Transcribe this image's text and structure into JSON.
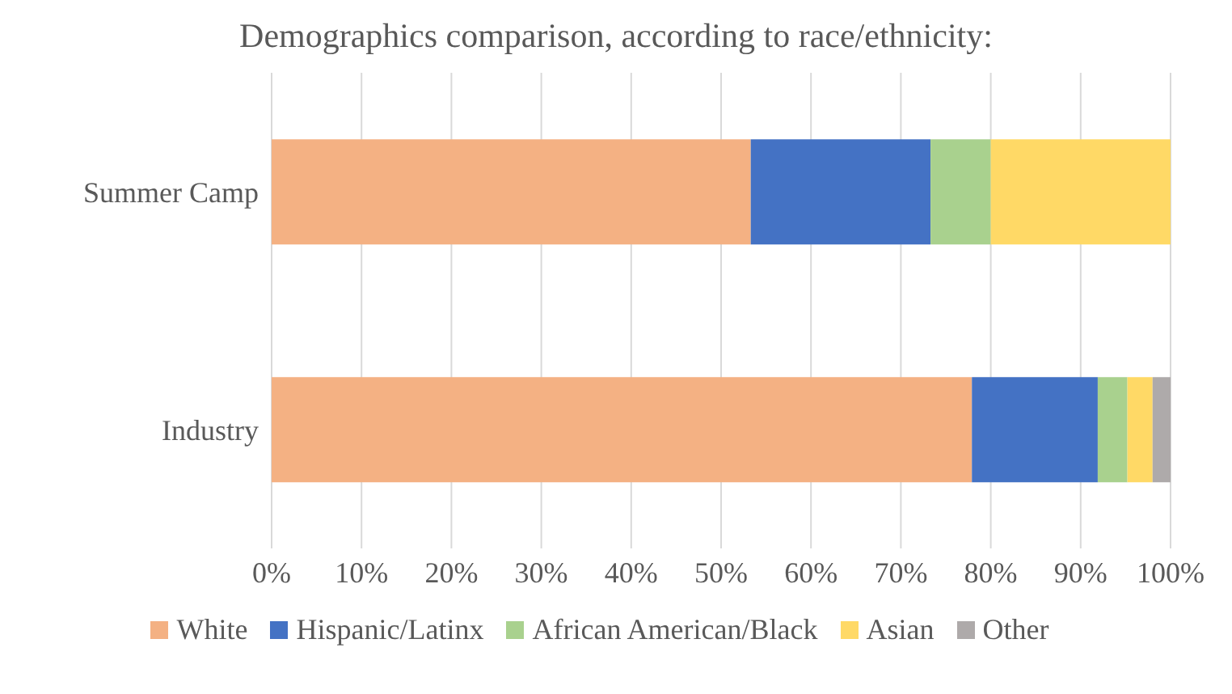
{
  "chart_data": {
    "type": "bar",
    "orientation": "horizontal",
    "stacked": true,
    "title": "Demographics comparison, according to race/ethnicity:",
    "categories": [
      "Summer Camp",
      "Industry"
    ],
    "series": [
      {
        "name": "White",
        "color": "#f4b183",
        "values": [
          53.3,
          77.9
        ]
      },
      {
        "name": "Hispanic/Latinx",
        "color": "#4472c4",
        "values": [
          20.0,
          14.0
        ]
      },
      {
        "name": "African American/Black",
        "color": "#a9d18e",
        "values": [
          6.7,
          3.3
        ]
      },
      {
        "name": "Asian",
        "color": "#ffd966",
        "values": [
          20.0,
          2.8
        ]
      },
      {
        "name": "Other",
        "color": "#aeaaaa",
        "values": [
          null,
          2.0
        ]
      }
    ],
    "xlim": [
      0,
      100
    ],
    "xticks": [
      {
        "value": 0,
        "label": "0%"
      },
      {
        "value": 10,
        "label": "10%"
      },
      {
        "value": 20,
        "label": "20%"
      },
      {
        "value": 30,
        "label": "30%"
      },
      {
        "value": 40,
        "label": "40%"
      },
      {
        "value": 50,
        "label": "50%"
      },
      {
        "value": 60,
        "label": "60%"
      },
      {
        "value": 70,
        "label": "70%"
      },
      {
        "value": 80,
        "label": "80%"
      },
      {
        "value": 90,
        "label": "90%"
      },
      {
        "value": 100,
        "label": "100%"
      }
    ],
    "grid": "x",
    "legend": "bottom"
  }
}
